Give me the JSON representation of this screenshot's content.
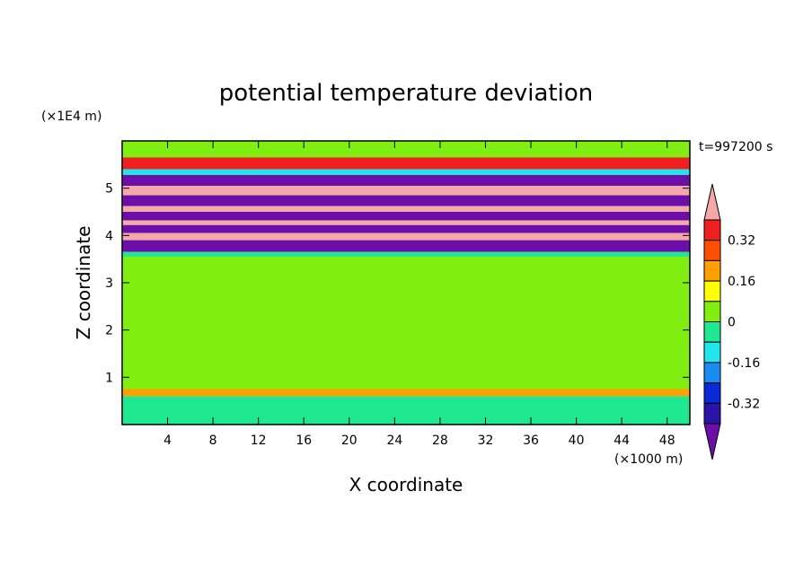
{
  "chart_data": {
    "type": "heatmap",
    "title": "potential temperature deviation",
    "xlabel": "X coordinate",
    "ylabel": "Z coordinate",
    "x_unit": "(×1000 m)",
    "y_unit": "(×1E4 m)",
    "time_label": "t=997200 s",
    "xlim": [
      0,
      50
    ],
    "ylim": [
      0,
      6
    ],
    "x_ticks": [
      4,
      8,
      12,
      16,
      20,
      24,
      28,
      32,
      36,
      40,
      44,
      48
    ],
    "y_ticks": [
      1,
      2,
      3,
      4,
      5
    ],
    "colorbar": {
      "labels": [
        "0.32",
        "0.16",
        "0",
        "-0.16",
        "-0.32"
      ],
      "label_values": [
        0.32,
        0.16,
        0,
        -0.16,
        -0.32
      ],
      "levels": [
        -0.4,
        -0.32,
        -0.24,
        -0.16,
        -0.08,
        0,
        0.08,
        0.16,
        0.24,
        0.32,
        0.4
      ],
      "colors": [
        "#6b0fa8",
        "#2a13a8",
        "#0a2ad8",
        "#1a8cf0",
        "#22e6ee",
        "#20e890",
        "#80ee10",
        "#ffff00",
        "#ffa000",
        "#ff5000",
        "#f02020",
        "#f4a8a8"
      ]
    },
    "bands": [
      {
        "z": [
          5.65,
          6.0
        ],
        "value": 0.0
      },
      {
        "z": [
          5.4,
          5.65
        ],
        "value": 0.36
      },
      {
        "z": [
          5.28,
          5.4
        ],
        "value": -0.1
      },
      {
        "z": [
          5.05,
          5.28
        ],
        "value": -0.42
      },
      {
        "z": [
          4.85,
          5.05
        ],
        "value": 0.45
      },
      {
        "z": [
          4.62,
          4.85
        ],
        "value": -0.42
      },
      {
        "z": [
          4.5,
          4.62
        ],
        "value": 0.45
      },
      {
        "z": [
          4.32,
          4.5
        ],
        "value": -0.42
      },
      {
        "z": [
          4.22,
          4.32
        ],
        "value": 0.45
      },
      {
        "z": [
          4.05,
          4.22
        ],
        "value": -0.42
      },
      {
        "z": [
          3.9,
          4.05
        ],
        "value": 0.45
      },
      {
        "z": [
          3.65,
          3.9
        ],
        "value": -0.42
      },
      {
        "z": [
          3.55,
          3.65
        ],
        "value": -0.05
      },
      {
        "z": [
          0.75,
          3.55
        ],
        "value": 0.05
      },
      {
        "z": [
          0.6,
          0.75
        ],
        "value": 0.2
      },
      {
        "z": [
          0.0,
          0.6
        ],
        "value": -0.02
      }
    ]
  }
}
